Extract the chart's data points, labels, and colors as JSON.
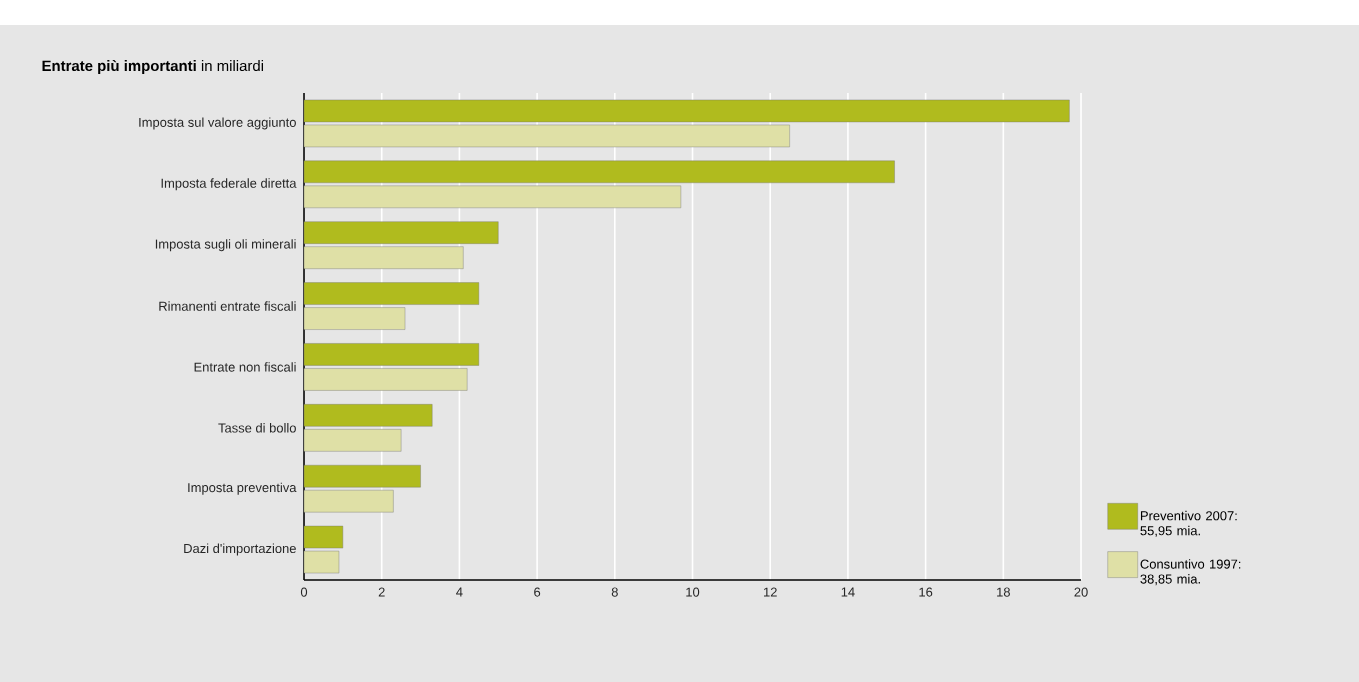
{
  "chart_data": {
    "type": "bar",
    "orientation": "horizontal",
    "title": "**Entrate più importanti** in miliardi",
    "categories": [
      "Imposta sul valore aggiunto",
      "Imposta federale diretta",
      "Imposta sugli oli minerali",
      "Rimanenti entrate fiscali",
      "Entrate non fiscali",
      "Tasse di bollo",
      "Imposta preventiva",
      "Dazi d'importazione"
    ],
    "series": [
      {
        "name": "Preventivo 2007: 55,95 mia.",
        "color": "#b0bb1e",
        "values": [
          19.7,
          15.2,
          5.0,
          4.5,
          4.5,
          3.3,
          3.0,
          1.0
        ]
      },
      {
        "name": "Consuntivo 1997: 38,85 mia.",
        "color": "#dfe0a6",
        "values": [
          12.5,
          9.7,
          4.1,
          2.6,
          4.2,
          2.5,
          2.3,
          0.9
        ]
      }
    ],
    "xlim": [
      0,
      20
    ],
    "xticks": [
      0,
      2,
      4,
      6,
      8,
      10,
      12,
      14,
      16,
      18,
      20
    ],
    "grid": "x",
    "legend": "bottom right"
  }
}
